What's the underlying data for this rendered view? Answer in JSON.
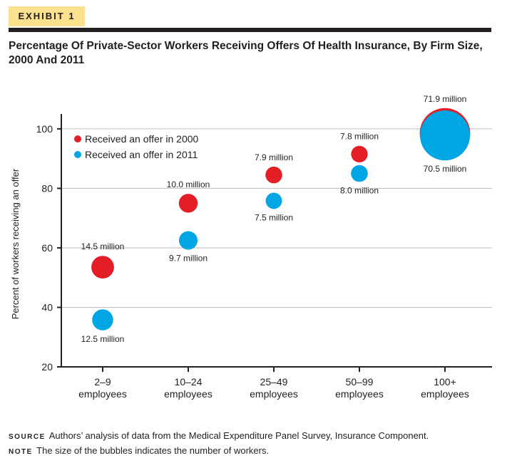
{
  "header": {
    "exhibit": "EXHIBIT 1",
    "title": "Percentage Of Private-Sector Workers Receiving Offers Of Health Insurance, By Firm Size, 2000 And 2011"
  },
  "colors": {
    "series_2000": "#e41e26",
    "series_2011": "#00a6e4",
    "grid": "#bdbdbd",
    "axis": "#231f20"
  },
  "chart_data": {
    "type": "scatter",
    "subtype": "bubble",
    "title": "Percentage Of Private-Sector Workers Receiving Offers Of Health Insurance, By Firm Size, 2000 And 2011",
    "ylabel": "Percent of workers receiving an offer",
    "xlabel": "",
    "ylim": [
      20,
      105
    ],
    "yticks": [
      20,
      40,
      60,
      80,
      100
    ],
    "grid": "horizontal",
    "legend_position": "top-left",
    "categories": [
      "2–9\nemployees",
      "10–24\nemployees",
      "25–49\nemployees",
      "50–99\nemployees",
      "100+\nemployees"
    ],
    "series": [
      {
        "name": "Received an offer in 2000",
        "color": "#e41e26",
        "values": [
          53.5,
          75.0,
          84.5,
          91.5,
          98.5
        ],
        "workers_million": [
          14.5,
          10.0,
          7.9,
          7.8,
          71.9
        ],
        "labels": [
          "14.5 million",
          "10.0 million",
          "7.9 million",
          "7.8 million",
          "71.9 million"
        ]
      },
      {
        "name": "Received an offer in 2011",
        "color": "#00a6e4",
        "values": [
          35.8,
          62.5,
          75.8,
          85.0,
          97.8
        ],
        "workers_million": [
          12.5,
          9.7,
          7.5,
          8.0,
          70.5
        ],
        "labels": [
          "12.5 million",
          "9.7 million",
          "7.5 million",
          "8.0 million",
          "70.5 million"
        ]
      }
    ]
  },
  "footnotes": {
    "source_key": "Source",
    "source_text": "Authors’ analysis of data from the Medical Expenditure Panel Survey, Insurance Component.",
    "note_key": "Note",
    "note_text": "The size of the bubbles indicates the number of workers."
  }
}
